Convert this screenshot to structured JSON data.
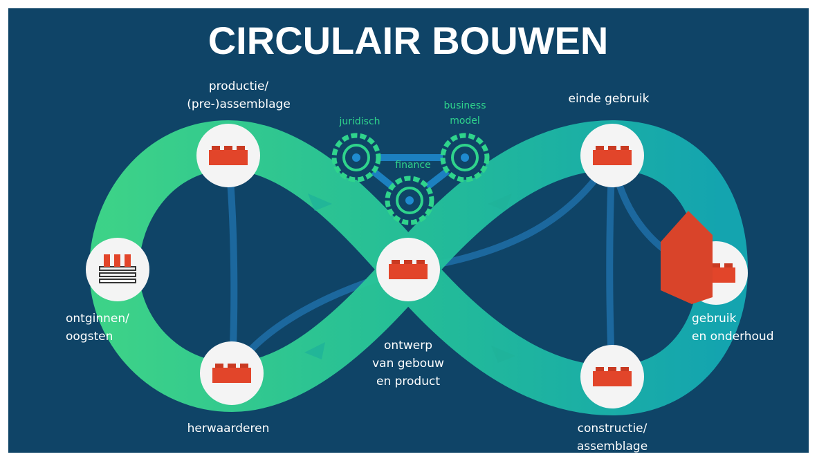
{
  "title": "CIRCULAIR BOUWEN",
  "nodes": [
    {
      "lines": [
        "productie/",
        "(pre-)assemblage"
      ]
    },
    {
      "lines": [
        "einde gebruik"
      ]
    },
    {
      "lines": [
        "ontginnen/",
        "oogsten"
      ]
    },
    {
      "lines": [
        "gebruik",
        "en onderhoud"
      ]
    },
    {
      "lines": [
        "herwaarderen"
      ]
    },
    {
      "lines": [
        "ontwerp",
        "van gebouw",
        "en product"
      ]
    },
    {
      "lines": [
        "constructie/",
        "assemblage"
      ]
    }
  ],
  "gears": [
    {
      "lines": [
        "juridisch"
      ]
    },
    {
      "lines": [
        "business",
        "model"
      ]
    },
    {
      "lines": [
        "finance"
      ]
    }
  ]
}
